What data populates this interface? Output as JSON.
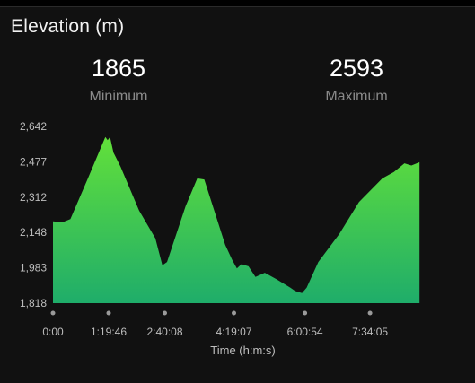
{
  "card": {
    "title": "Elevation (m)",
    "stats": {
      "minimum": {
        "value": "1865",
        "label": "Minimum"
      },
      "maximum": {
        "value": "2593",
        "label": "Maximum"
      }
    }
  },
  "chart_data": {
    "type": "area",
    "title": "",
    "xlabel": "Time (h:m:s)",
    "ylabel": "",
    "ylim": [
      1818,
      2642
    ],
    "xlim": [
      0,
      34800
    ],
    "y_ticks": [
      {
        "value": 1818,
        "label": "1,818"
      },
      {
        "value": 1983,
        "label": "1,983"
      },
      {
        "value": 2148,
        "label": "2,148"
      },
      {
        "value": 2312,
        "label": "2,312"
      },
      {
        "value": 2477,
        "label": "2,477"
      },
      {
        "value": 2642,
        "label": "2,642"
      }
    ],
    "x_ticks": [
      {
        "value": 0,
        "label": "0:00"
      },
      {
        "value": 4786,
        "label": "1:19:46"
      },
      {
        "value": 9608,
        "label": "2:40:08"
      },
      {
        "value": 15547,
        "label": "4:19:07"
      },
      {
        "value": 21654,
        "label": "6:00:54"
      },
      {
        "value": 27245,
        "label": "7:34:05"
      }
    ],
    "grid": false,
    "fill_gradient": [
      "#62e03a",
      "#1fad6a"
    ],
    "series": [
      {
        "x": [
          0,
          800,
          1500,
          3000,
          4500,
          4700,
          4900,
          5200,
          5800,
          7400,
          8800,
          9400,
          9800,
          11400,
          12400,
          13000,
          14800,
          15400,
          15800,
          16200,
          16800,
          17400,
          18200,
          19200,
          20400,
          20800,
          21400,
          21800,
          22800,
          24600,
          26300,
          28300,
          29300,
          30200,
          30800,
          31500
        ],
        "y": [
          2200,
          2195,
          2210,
          2400,
          2593,
          2578,
          2593,
          2520,
          2455,
          2250,
          2120,
          1995,
          2010,
          2270,
          2400,
          2395,
          2090,
          2020,
          1980,
          2000,
          1990,
          1940,
          1960,
          1930,
          1890,
          1875,
          1865,
          1890,
          2010,
          2140,
          2290,
          2400,
          2430,
          2470,
          2460,
          2475
        ]
      }
    ]
  }
}
